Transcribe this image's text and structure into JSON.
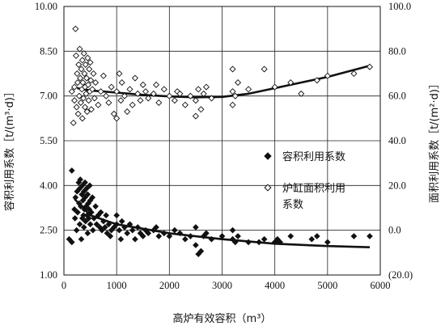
{
  "chart_data": {
    "type": "scatter",
    "title": "",
    "xlabel": "高炉有效容积（m³）",
    "ylabel": "容积利用系数［t/(m³·d)］",
    "y2label": "面积利用系数［t/(m²·d)］",
    "xlim": [
      0,
      6000
    ],
    "ylim": [
      1.0,
      10.0
    ],
    "y2lim": [
      -20.0,
      100.0
    ],
    "x_ticks": [
      "0",
      "1000",
      "2000",
      "3000",
      "4000",
      "5000",
      "6000"
    ],
    "y_ticks": [
      "1.00",
      "2.50",
      "4.00",
      "5.50",
      "7.00",
      "8.50",
      "10.00"
    ],
    "y2_ticks": [
      "(20.0)",
      "0.0",
      "20.0",
      "40.0",
      "60.0",
      "80.0",
      "100.0"
    ],
    "grid": true,
    "legend_position": "right-middle",
    "series": [
      {
        "name": "容积利用系数",
        "axis": "left",
        "marker": "filled-diamond",
        "color": "#111111",
        "points": [
          [
            100,
            2.2
          ],
          [
            150,
            4.5
          ],
          [
            150,
            2.1
          ],
          [
            200,
            3.2
          ],
          [
            210,
            2.9
          ],
          [
            220,
            3.6
          ],
          [
            240,
            2.5
          ],
          [
            250,
            3.8
          ],
          [
            260,
            3.1
          ],
          [
            280,
            4.1
          ],
          [
            290,
            3.4
          ],
          [
            300,
            2.7
          ],
          [
            300,
            3.9
          ],
          [
            310,
            4.2
          ],
          [
            320,
            3.3
          ],
          [
            330,
            2.2
          ],
          [
            340,
            3.7
          ],
          [
            350,
            2.9
          ],
          [
            350,
            4.0
          ],
          [
            360,
            3.5
          ],
          [
            370,
            3.0
          ],
          [
            380,
            2.6
          ],
          [
            380,
            3.8
          ],
          [
            390,
            3.2
          ],
          [
            400,
            4.1
          ],
          [
            400,
            3.6
          ],
          [
            410,
            2.8
          ],
          [
            420,
            3.3
          ],
          [
            430,
            3.9
          ],
          [
            440,
            3.0
          ],
          [
            450,
            2.4
          ],
          [
            450,
            3.7
          ],
          [
            460,
            3.4
          ],
          [
            470,
            2.9
          ],
          [
            480,
            3.2
          ],
          [
            490,
            4.0
          ],
          [
            500,
            3.5
          ],
          [
            500,
            2.7
          ],
          [
            520,
            3.1
          ],
          [
            540,
            3.6
          ],
          [
            550,
            2.5
          ],
          [
            570,
            2.9
          ],
          [
            600,
            3.3
          ],
          [
            620,
            2.7
          ],
          [
            650,
            3.0
          ],
          [
            680,
            2.6
          ],
          [
            700,
            3.1
          ],
          [
            720,
            2.5
          ],
          [
            750,
            2.8
          ],
          [
            780,
            2.6
          ],
          [
            800,
            3.0
          ],
          [
            820,
            2.4
          ],
          [
            850,
            2.7
          ],
          [
            880,
            2.3
          ],
          [
            900,
            2.5
          ],
          [
            950,
            2.6
          ],
          [
            1000,
            3.0
          ],
          [
            1000,
            2.7
          ],
          [
            1050,
            2.5
          ],
          [
            1080,
            2.2
          ],
          [
            1100,
            2.8
          ],
          [
            1150,
            2.6
          ],
          [
            1200,
            2.4
          ],
          [
            1250,
            2.7
          ],
          [
            1300,
            2.5
          ],
          [
            1350,
            2.2
          ],
          [
            1400,
            2.6
          ],
          [
            1450,
            2.4
          ],
          [
            1500,
            2.3
          ],
          [
            1550,
            2.5
          ],
          [
            1600,
            2.4
          ],
          [
            1700,
            2.5
          ],
          [
            1750,
            2.6
          ],
          [
            1800,
            2.3
          ],
          [
            1900,
            2.4
          ],
          [
            2000,
            2.3
          ],
          [
            2100,
            2.5
          ],
          [
            2200,
            2.4
          ],
          [
            2300,
            2.2
          ],
          [
            2400,
            2.3
          ],
          [
            2500,
            2.0
          ],
          [
            2500,
            2.6
          ],
          [
            2550,
            1.7
          ],
          [
            2600,
            1.8
          ],
          [
            2650,
            2.3
          ],
          [
            2700,
            2.4
          ],
          [
            2800,
            2.2
          ],
          [
            3000,
            2.3
          ],
          [
            3200,
            2.2
          ],
          [
            3200,
            2.5
          ],
          [
            3250,
            2.1
          ],
          [
            3300,
            2.3
          ],
          [
            3500,
            2.1
          ],
          [
            3700,
            2.1
          ],
          [
            3800,
            2.2
          ],
          [
            4000,
            2.1
          ],
          [
            4050,
            2.2
          ],
          [
            4100,
            2.1
          ],
          [
            4300,
            2.3
          ],
          [
            4700,
            2.2
          ],
          [
            4800,
            2.3
          ],
          [
            5000,
            2.1
          ],
          [
            5500,
            2.3
          ],
          [
            5800,
            2.3
          ]
        ],
        "trend": [
          [
            200,
            3.55
          ],
          [
            500,
            3.0
          ],
          [
            1000,
            2.7
          ],
          [
            1500,
            2.55
          ],
          [
            2000,
            2.4
          ],
          [
            3000,
            2.2
          ],
          [
            4000,
            2.05
          ],
          [
            5000,
            1.97
          ],
          [
            5800,
            1.93
          ]
        ]
      },
      {
        "name": "炉缸面积利用系数",
        "axis": "right",
        "marker": "hollow-diamond",
        "color": "#111111",
        "points": [
          [
            150,
            62
          ],
          [
            180,
            48
          ],
          [
            200,
            64
          ],
          [
            200,
            58
          ],
          [
            220,
            90
          ],
          [
            230,
            78
          ],
          [
            240,
            55
          ],
          [
            250,
            70
          ],
          [
            260,
            66
          ],
          [
            270,
            52
          ],
          [
            280,
            74
          ],
          [
            290,
            60
          ],
          [
            300,
            81
          ],
          [
            310,
            68
          ],
          [
            320,
            57
          ],
          [
            330,
            72
          ],
          [
            340,
            63
          ],
          [
            350,
            50
          ],
          [
            350,
            76
          ],
          [
            360,
            66
          ],
          [
            370,
            59
          ],
          [
            380,
            79
          ],
          [
            390,
            70
          ],
          [
            400,
            55
          ],
          [
            400,
            64
          ],
          [
            410,
            74
          ],
          [
            420,
            61
          ],
          [
            430,
            68
          ],
          [
            440,
            53
          ],
          [
            450,
            77
          ],
          [
            460,
            65
          ],
          [
            470,
            58
          ],
          [
            480,
            72
          ],
          [
            490,
            62
          ],
          [
            500,
            75
          ],
          [
            510,
            67
          ],
          [
            520,
            54
          ],
          [
            540,
            63
          ],
          [
            560,
            70
          ],
          [
            580,
            59
          ],
          [
            600,
            66
          ],
          [
            650,
            56
          ],
          [
            700,
            62
          ],
          [
            750,
            69
          ],
          [
            800,
            60
          ],
          [
            850,
            57
          ],
          [
            900,
            64
          ],
          [
            950,
            52
          ],
          [
            1000,
            50
          ],
          [
            1000,
            62
          ],
          [
            1050,
            70
          ],
          [
            1080,
            58
          ],
          [
            1100,
            66
          ],
          [
            1150,
            60
          ],
          [
            1200,
            53
          ],
          [
            1250,
            63
          ],
          [
            1300,
            56
          ],
          [
            1350,
            68
          ],
          [
            1400,
            61
          ],
          [
            1450,
            58
          ],
          [
            1500,
            65
          ],
          [
            1550,
            62
          ],
          [
            1600,
            59
          ],
          [
            1700,
            61
          ],
          [
            1750,
            65
          ],
          [
            1800,
            57
          ],
          [
            1900,
            63
          ],
          [
            2000,
            60
          ],
          [
            2100,
            58
          ],
          [
            2150,
            62
          ],
          [
            2200,
            61
          ],
          [
            2300,
            56
          ],
          [
            2400,
            60
          ],
          [
            2500,
            51
          ],
          [
            2500,
            58
          ],
          [
            2550,
            63
          ],
          [
            2600,
            54
          ],
          [
            2650,
            61
          ],
          [
            2700,
            64
          ],
          [
            2800,
            59
          ],
          [
            3200,
            72
          ],
          [
            3200,
            62
          ],
          [
            3200,
            56
          ],
          [
            3250,
            60
          ],
          [
            3300,
            66
          ],
          [
            3500,
            63
          ],
          [
            3800,
            72
          ],
          [
            4000,
            64
          ],
          [
            4300,
            66
          ],
          [
            4500,
            61
          ],
          [
            4800,
            67
          ],
          [
            5000,
            69
          ],
          [
            5500,
            70
          ],
          [
            5800,
            73
          ]
        ],
        "trend": [
          [
            250,
            63.5
          ],
          [
            500,
            62.5
          ],
          [
            1000,
            61.5
          ],
          [
            1500,
            60.5
          ],
          [
            2000,
            59.8
          ],
          [
            2500,
            59.4
          ],
          [
            3000,
            59.6
          ],
          [
            3500,
            61.0
          ],
          [
            4000,
            63.5
          ],
          [
            5000,
            68.5
          ],
          [
            5800,
            73.5
          ]
        ]
      }
    ]
  }
}
